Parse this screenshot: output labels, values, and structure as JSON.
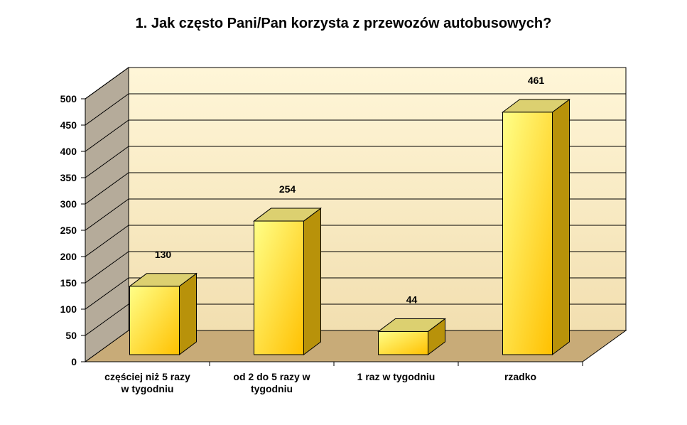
{
  "chart_data": {
    "type": "bar",
    "title": "1. Jak często Pani/Pan korzysta z przewozów autobusowych?",
    "categories": [
      [
        "częściej niż 5 razy",
        "w tygodniu"
      ],
      [
        "od 2 do 5 razy w",
        "tygodniu"
      ],
      [
        "1 raz w tygodniu"
      ],
      [
        "rzadko"
      ]
    ],
    "values": [
      130,
      254,
      44,
      461
    ],
    "ylim": [
      0,
      500
    ],
    "yticks": [
      0,
      50,
      100,
      150,
      200,
      250,
      300,
      350,
      400,
      450,
      500
    ],
    "grid": true,
    "data_labels": true,
    "three_d": true,
    "colors": {
      "bar_light": "#ffff88",
      "bar_dark": "#ffc000",
      "bar_side": "#b8920a",
      "bar_top": "#dcd070",
      "wall_back_top": "#fff6d8",
      "wall_back_bottom": "#f2dfb0",
      "wall_side": "#b5ab9a",
      "floor": "#c8ab78"
    }
  }
}
